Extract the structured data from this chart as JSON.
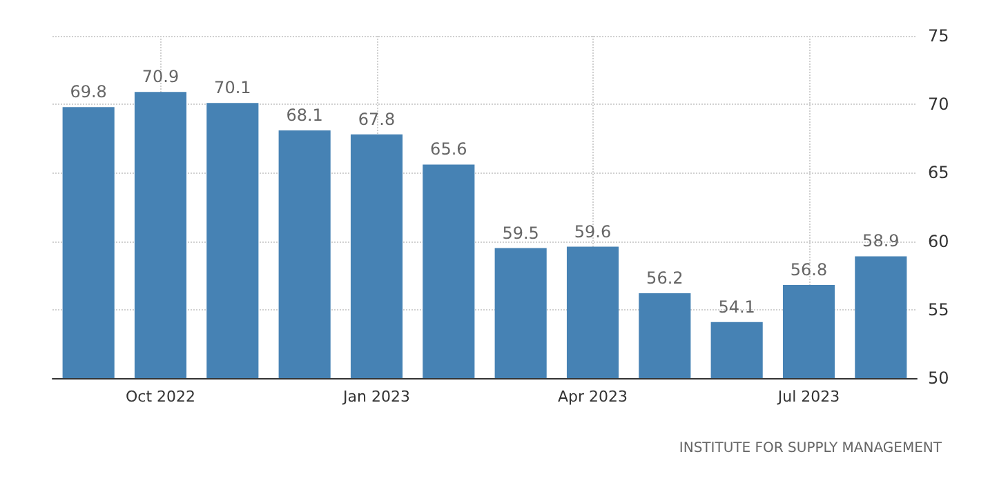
{
  "chart_data": {
    "type": "bar",
    "categories": [
      null,
      "Oct 2022",
      null,
      null,
      "Jan 2023",
      null,
      null,
      "Apr 2023",
      null,
      null,
      "Jul 2023",
      null
    ],
    "values": [
      69.8,
      70.9,
      70.1,
      68.1,
      67.8,
      65.6,
      59.5,
      59.6,
      56.2,
      54.1,
      56.8,
      58.9
    ],
    "color": "#4682b4",
    "ylim": [
      50,
      75
    ],
    "yticks": [
      50,
      55,
      60,
      65,
      70,
      75
    ],
    "grid": true,
    "data_labels": true,
    "annotations": [
      "INSTITUTE FOR SUPPLY MANAGEMENT"
    ]
  }
}
